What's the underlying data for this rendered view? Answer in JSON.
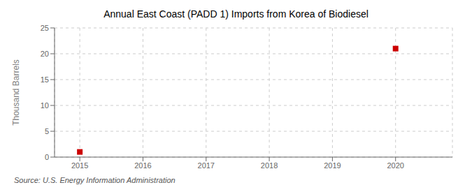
{
  "chart_data": {
    "type": "scatter",
    "title": "Annual East Coast (PADD 1) Imports from Korea of Biodiesel",
    "ylabel": "Thousand Barrels",
    "annotation": "Source: U.S. Energy Information Administration",
    "x": [
      2015,
      2020
    ],
    "values": [
      1,
      21
    ],
    "color": "#cc0000",
    "marker": "square",
    "xlim": [
      2014.6,
      2020.9
    ],
    "xticks": [
      2015,
      2016,
      2017,
      2018,
      2019,
      2020
    ],
    "ylim": [
      0,
      25
    ],
    "yticks": [
      0,
      5,
      10,
      15,
      20,
      25
    ],
    "grid": true
  }
}
